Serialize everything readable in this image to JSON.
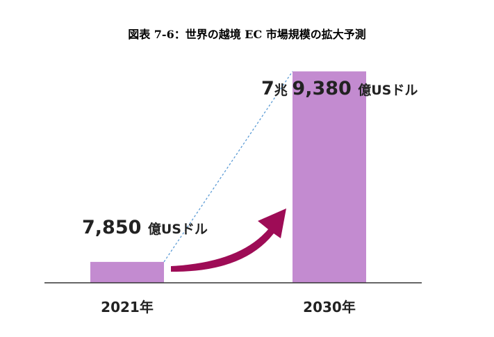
{
  "title": "図表 7-6：世界の越境 EC 市場規模の拡大予測",
  "colors": {
    "bar": "#c38bd0",
    "arrow": "#9e0c56",
    "axis": "#333333",
    "connector": "#5b9bd5"
  },
  "chart_data": {
    "type": "bar",
    "categories": [
      "2021年",
      "2030年"
    ],
    "values": [
      7850,
      79380
    ],
    "unit": "億USドル",
    "ylim": [
      0,
      90000
    ],
    "data_labels": [
      {
        "main": "7,850",
        "suffix": "億USドル"
      },
      {
        "prefix": "7兆",
        "main": "9,380",
        "suffix": "億USドル"
      }
    ],
    "grid": false,
    "legend": "none",
    "annotations": [
      "growth-arrow",
      "dashed-connector"
    ]
  }
}
